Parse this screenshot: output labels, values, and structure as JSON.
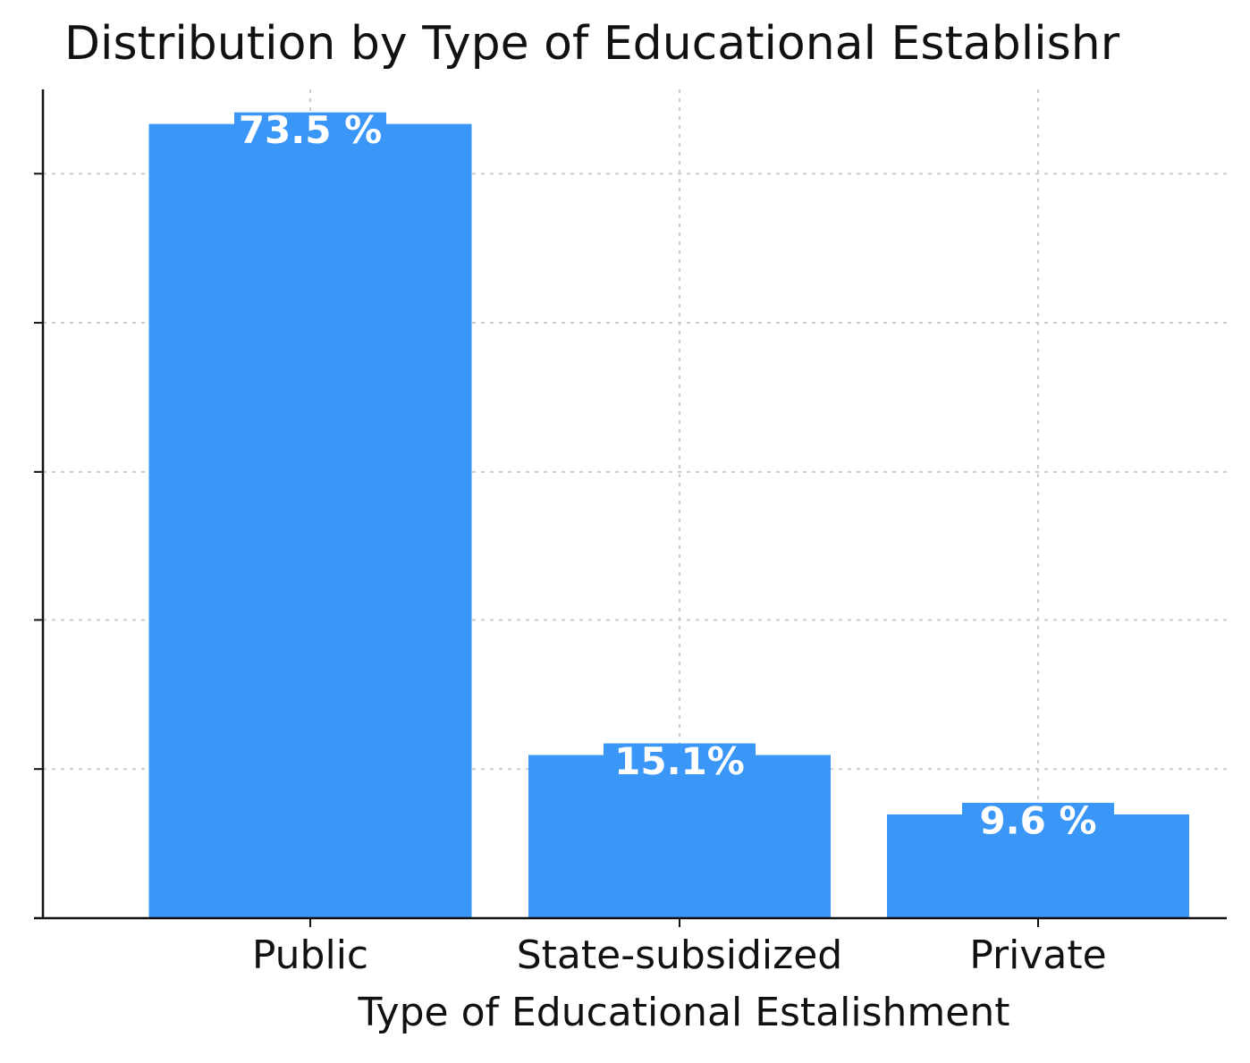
{
  "chart_data": {
    "type": "bar",
    "title": "Distribution by Type of Educational Establishr",
    "x_label": "Type of Educational Estalishment",
    "categories": [
      "Public",
      "State-subsidized",
      "Private"
    ],
    "values": [
      73.5,
      15.1,
      9.6
    ],
    "value_labels": [
      "73.5 %",
      "15.1%",
      "9.6 %"
    ],
    "color": "#3a96f7",
    "ylim": [
      0,
      76.7
    ],
    "yticks": [
      0,
      13.8,
      27.6,
      41.3,
      55.1,
      68.9
    ],
    "grid": true
  }
}
